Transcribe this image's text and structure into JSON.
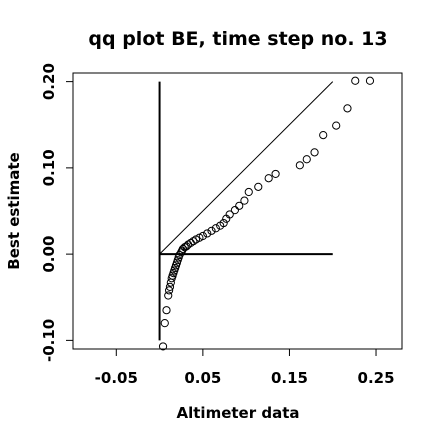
{
  "chart_data": {
    "type": "scatter",
    "title": "qq plot BE, time step no. 13",
    "xlabel": "Altimeter data",
    "ylabel": "Best estimate",
    "xlim": [
      -0.1,
      0.28
    ],
    "ylim": [
      -0.11,
      0.21
    ],
    "x_ticks": [
      -0.05,
      0.05,
      0.15,
      0.25
    ],
    "x_tick_labels": [
      "-0.05",
      "0.05",
      "0.15",
      "0.25"
    ],
    "y_ticks": [
      -0.1,
      0.0,
      0.1,
      0.2
    ],
    "y_tick_labels": [
      "-0.10",
      "0.00",
      "0.10",
      "0.20"
    ],
    "grid": false,
    "reference_lines": [
      {
        "name": "identity",
        "x": [
          0.0,
          0.2
        ],
        "y": [
          0.0,
          0.2
        ]
      },
      {
        "name": "vertical-axis",
        "x": [
          0.0,
          0.0
        ],
        "y": [
          -0.1,
          0.2
        ]
      },
      {
        "name": "horizontal-axis",
        "x": [
          0.0,
          0.2
        ],
        "y": [
          0.0,
          0.0
        ]
      }
    ],
    "series": [
      {
        "marker": "open-circle",
        "x": [
          0.004,
          0.006,
          0.008,
          0.01,
          0.011,
          0.012,
          0.013,
          0.014,
          0.015,
          0.016,
          0.017,
          0.018,
          0.019,
          0.02,
          0.021,
          0.022,
          0.023,
          0.025,
          0.026,
          0.027,
          0.029,
          0.031,
          0.033,
          0.036,
          0.039,
          0.042,
          0.046,
          0.05,
          0.055,
          0.06,
          0.065,
          0.07,
          0.074,
          0.077,
          0.081,
          0.087,
          0.092,
          0.098,
          0.103,
          0.114,
          0.126,
          0.134,
          0.162,
          0.17,
          0.179,
          0.189,
          0.204,
          0.217,
          0.226,
          0.243
        ],
        "y": [
          -0.107,
          -0.08,
          -0.065,
          -0.048,
          -0.042,
          -0.038,
          -0.033,
          -0.028,
          -0.025,
          -0.022,
          -0.019,
          -0.016,
          -0.013,
          -0.01,
          -0.007,
          -0.004,
          -0.001,
          0.002,
          0.004,
          0.006,
          0.008,
          0.009,
          0.011,
          0.013,
          0.015,
          0.017,
          0.019,
          0.021,
          0.024,
          0.027,
          0.03,
          0.033,
          0.036,
          0.041,
          0.046,
          0.051,
          0.056,
          0.062,
          0.072,
          0.078,
          0.088,
          0.093,
          0.103,
          0.11,
          0.118,
          0.138,
          0.149,
          0.169,
          0.201,
          0.201
        ]
      }
    ]
  }
}
